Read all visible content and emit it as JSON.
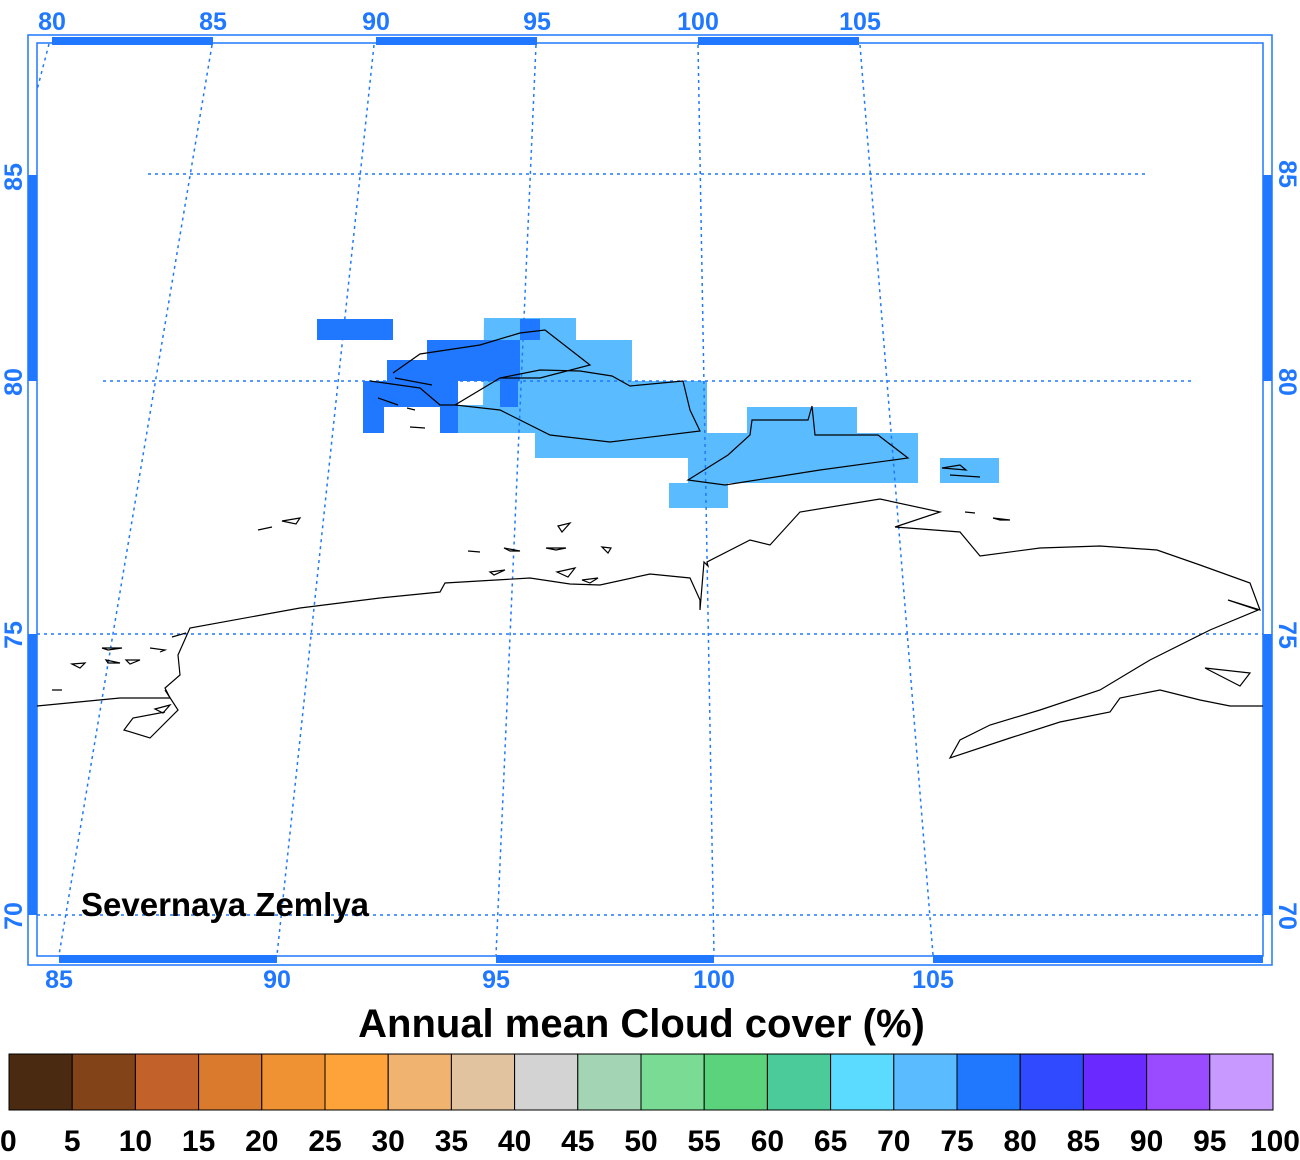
{
  "map": {
    "region_label": "Severnaya Zemlya",
    "top_lon_labels": [
      "80",
      "85",
      "90",
      "95",
      "100",
      "105"
    ],
    "bottom_lon_labels": [
      "85",
      "90",
      "95",
      "100",
      "105"
    ],
    "left_lat_labels": [
      "85",
      "80",
      "75",
      "70"
    ],
    "right_lat_labels": [
      "85",
      "80",
      "75",
      "70"
    ],
    "grid_style": "dotted",
    "frame_color": "#1f78ff",
    "coastline_color": "#000000"
  },
  "colorbar": {
    "title": "Annual mean Cloud cover (%)",
    "tick_labels": [
      "0",
      "5",
      "10",
      "15",
      "20",
      "25",
      "30",
      "35",
      "40",
      "45",
      "50",
      "55",
      "60",
      "65",
      "70",
      "75",
      "80",
      "85",
      "90",
      "95",
      "100"
    ],
    "colors": [
      "#4a2a10",
      "#834318",
      "#c2622a",
      "#d97a2c",
      "#ee9234",
      "#fda33a",
      "#f0b370",
      "#e2c3a0",
      "#d3d3d3",
      "#a3d5b5",
      "#7adb94",
      "#5ad37c",
      "#4acb99",
      "#5adbff",
      "#5abbff",
      "#1f78ff",
      "#2f4aff",
      "#6a2aff",
      "#9a4aff",
      "#c89aff"
    ]
  },
  "chart_data": {
    "type": "heatmap",
    "title": "Annual mean Cloud cover (%)",
    "region": "Severnaya Zemlya",
    "variable": "Annual mean Cloud cover",
    "unit": "%",
    "lon_ticks_top": [
      80,
      85,
      90,
      95,
      100,
      105
    ],
    "lon_ticks_bottom": [
      85,
      90,
      95,
      100,
      105
    ],
    "lat_ticks": [
      85,
      80,
      75,
      70
    ],
    "colorbar_ticks": [
      0,
      5,
      10,
      15,
      20,
      25,
      30,
      35,
      40,
      45,
      50,
      55,
      60,
      65,
      70,
      75,
      80,
      85,
      90,
      95,
      100
    ],
    "observed_value_ranges": [
      "70-75",
      "75-80"
    ]
  }
}
